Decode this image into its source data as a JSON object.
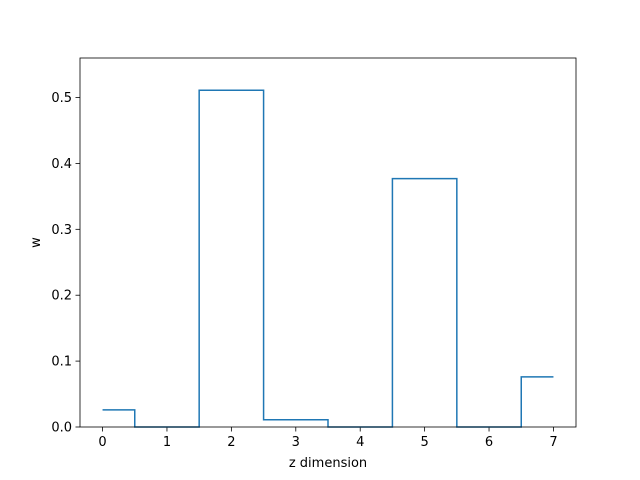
{
  "chart_data": {
    "type": "line",
    "drawstyle": "steps-mid",
    "title": "",
    "xlabel": "z dimension",
    "ylabel": "w",
    "xlim": [
      -0.35,
      7.35
    ],
    "ylim": [
      0,
      0.56
    ],
    "x_ticks": [
      0,
      1,
      2,
      3,
      4,
      5,
      6,
      7
    ],
    "x_tick_labels": [
      "0",
      "1",
      "2",
      "3",
      "4",
      "5",
      "6",
      "7"
    ],
    "y_ticks": [
      0.0,
      0.1,
      0.2,
      0.3,
      0.4,
      0.5
    ],
    "y_tick_labels": [
      "0.0",
      "0.1",
      "0.2",
      "0.3",
      "0.4",
      "0.5"
    ],
    "grid": false,
    "series": [
      {
        "color": "#1f77b4",
        "x": [
          0,
          1,
          2,
          3,
          4,
          5,
          6,
          7
        ],
        "values": [
          0.026,
          0.0,
          0.511,
          0.011,
          0.0,
          0.377,
          0.0,
          0.076
        ]
      }
    ]
  }
}
